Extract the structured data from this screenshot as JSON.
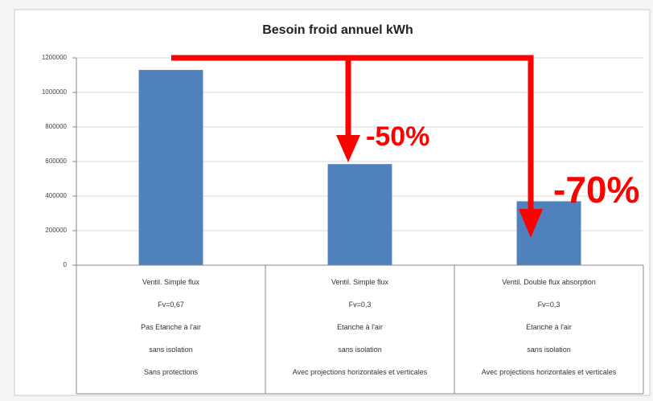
{
  "chart_data": {
    "type": "bar",
    "title": "Besoin froid annuel kWh",
    "categories": [
      [
        "Ventil. Simple flux",
        "Fv=0,67",
        "Pas Etanche à l'air",
        "sans isolation",
        "Sans protections"
      ],
      [
        "Ventil. Simple flux",
        "Fv=0,3",
        "Etanche à l'air",
        "sans isolation",
        "Avec projections horizontales et verticales"
      ],
      [
        "Ventil. Double flux absorption",
        "Fv=0,3",
        "Etanche à l'air",
        "sans isolation",
        "Avec projections horizontales et verticales"
      ]
    ],
    "values": [
      1130000,
      585000,
      370000
    ],
    "color": "#4f81bd",
    "ylim": [
      0,
      1200000
    ],
    "yticks": [
      0,
      200000,
      400000,
      600000,
      800000,
      1000000,
      1200000
    ],
    "grid": true,
    "annotations": [
      "-50%",
      "-70%"
    ]
  }
}
